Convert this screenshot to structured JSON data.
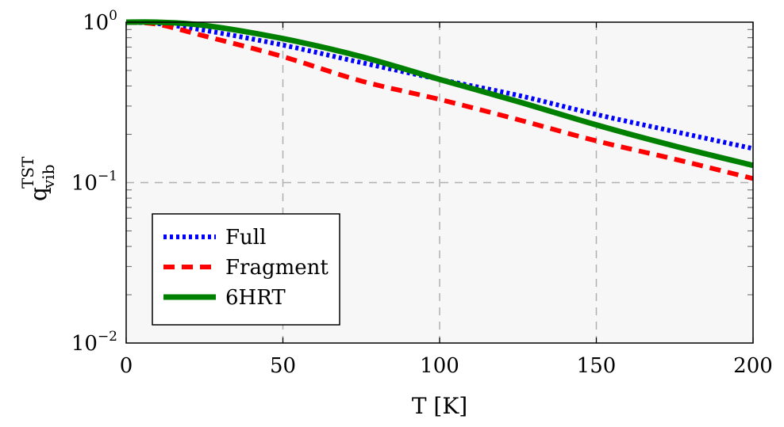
{
  "chart_data": {
    "type": "line",
    "xlabel": "T [K]",
    "ylabel": {
      "base": "q",
      "sub": "vib",
      "sup": "TST"
    },
    "xlim": [
      0,
      200
    ],
    "ylim": [
      0.01,
      1
    ],
    "yscale": "log",
    "grid": true,
    "legend_position": "bottom-left",
    "xticks": [
      "0",
      "50",
      "100",
      "150",
      "200"
    ],
    "xtick_values": [
      0,
      50,
      100,
      150,
      200
    ],
    "yticks": [
      {
        "base": "10",
        "exp": "0",
        "value": 1
      },
      {
        "base": "10",
        "exp": "−1",
        "value": 0.1
      },
      {
        "base": "10",
        "exp": "−2",
        "value": 0.01
      }
    ],
    "x": [
      0,
      10,
      25,
      50,
      75,
      100,
      125,
      150,
      175,
      200
    ],
    "series": [
      {
        "name": "Full",
        "color": "#0000ff",
        "style": "dotted",
        "values": [
          1.0,
          0.98,
          0.89,
          0.72,
          0.56,
          0.44,
          0.35,
          0.266,
          0.208,
          0.163
        ]
      },
      {
        "name": "Fragment",
        "color": "#ff0000",
        "style": "dashed",
        "values": [
          1.0,
          0.97,
          0.82,
          0.61,
          0.43,
          0.33,
          0.247,
          0.182,
          0.14,
          0.106
        ]
      },
      {
        "name": "6HRT",
        "color": "#008000",
        "style": "solid",
        "values": [
          1.0,
          1.0,
          0.955,
          0.79,
          0.61,
          0.44,
          0.32,
          0.229,
          0.169,
          0.128
        ]
      }
    ]
  }
}
